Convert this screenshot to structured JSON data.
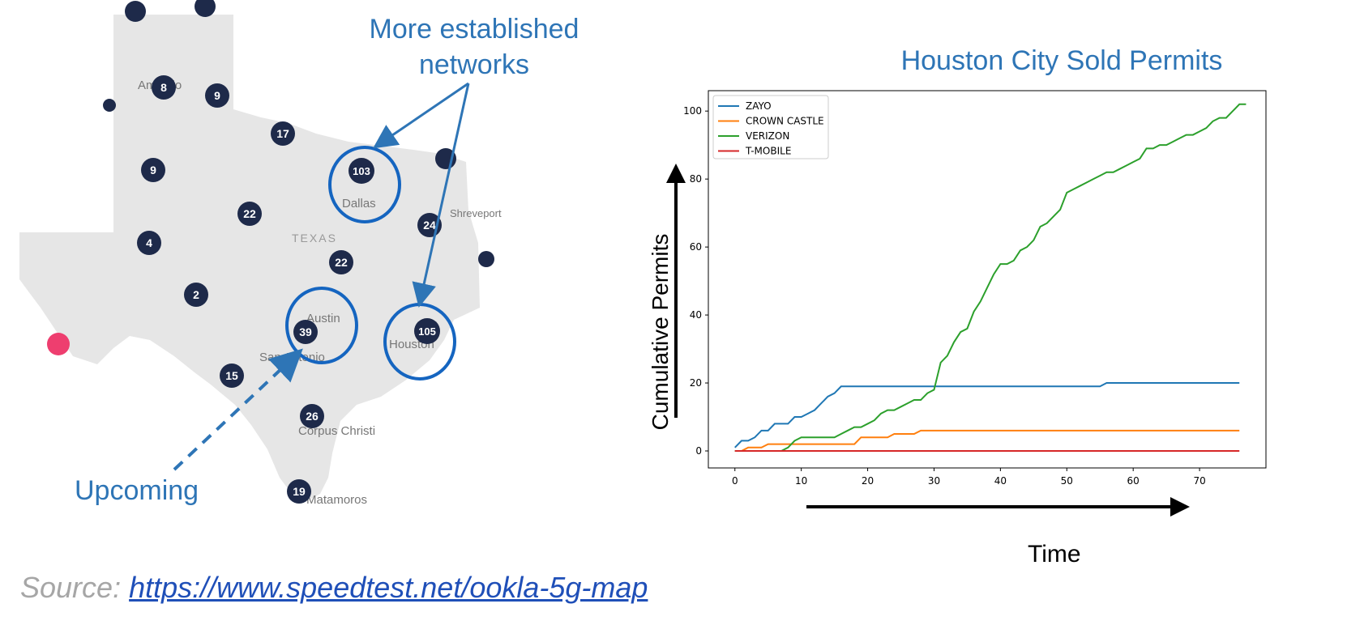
{
  "annotations": {
    "established": "More established networks",
    "upcoming": "Upcoming"
  },
  "map": {
    "state_label": "TEXAS",
    "cities": [
      "Amarillo",
      "Dallas",
      "Austin",
      "San Antonio",
      "Houston",
      "Corpus Christi",
      "Matamoros",
      "Shreveport"
    ],
    "markers": [
      "8",
      "9",
      "9",
      "17",
      "22",
      "4",
      "2",
      "22",
      "103",
      "24",
      "39",
      "105",
      "15",
      "26",
      "19"
    ],
    "colors": {
      "land": "#e6e6e6",
      "marker": "#1e2a4a",
      "circle": "#1565c0",
      "hot_marker": "#ee3e6f"
    }
  },
  "source": {
    "prefix": "Source:",
    "url_text": "https://www.speedtest.net/ookla-5g-map"
  },
  "chart_data": {
    "type": "line",
    "title": "Houston City Sold Permits",
    "xlabel": "Time",
    "ylabel": "Cumulative Permits",
    "xlim": [
      -4,
      80
    ],
    "ylim": [
      -5,
      106
    ],
    "xticks": [
      0,
      10,
      20,
      30,
      40,
      50,
      60,
      70
    ],
    "yticks": [
      0,
      20,
      40,
      60,
      80,
      100
    ],
    "legend_position": "top-left",
    "series": [
      {
        "name": "ZAYO",
        "color": "#1f77b4",
        "points": [
          [
            0,
            1
          ],
          [
            1,
            3
          ],
          [
            2,
            3
          ],
          [
            3,
            4
          ],
          [
            4,
            6
          ],
          [
            5,
            6
          ],
          [
            6,
            8
          ],
          [
            8,
            8
          ],
          [
            9,
            10
          ],
          [
            10,
            10
          ],
          [
            11,
            11
          ],
          [
            12,
            12
          ],
          [
            13,
            14
          ],
          [
            14,
            16
          ],
          [
            15,
            17
          ],
          [
            16,
            19
          ],
          [
            55,
            19
          ],
          [
            56,
            20
          ],
          [
            76,
            20
          ]
        ]
      },
      {
        "name": "CROWN CASTLE",
        "color": "#ff7f0e",
        "points": [
          [
            0,
            0
          ],
          [
            1,
            0
          ],
          [
            2,
            1
          ],
          [
            4,
            1
          ],
          [
            5,
            2
          ],
          [
            18,
            2
          ],
          [
            19,
            4
          ],
          [
            23,
            4
          ],
          [
            24,
            5
          ],
          [
            27,
            5
          ],
          [
            28,
            6
          ],
          [
            76,
            6
          ]
        ]
      },
      {
        "name": "VERIZON",
        "color": "#2ca02c",
        "points": [
          [
            0,
            0
          ],
          [
            7,
            0
          ],
          [
            8,
            1
          ],
          [
            9,
            3
          ],
          [
            10,
            4
          ],
          [
            15,
            4
          ],
          [
            16,
            5
          ],
          [
            17,
            6
          ],
          [
            18,
            7
          ],
          [
            19,
            7
          ],
          [
            20,
            8
          ],
          [
            21,
            9
          ],
          [
            22,
            11
          ],
          [
            23,
            12
          ],
          [
            24,
            12
          ],
          [
            25,
            13
          ],
          [
            26,
            14
          ],
          [
            27,
            15
          ],
          [
            28,
            15
          ],
          [
            29,
            17
          ],
          [
            30,
            18
          ],
          [
            31,
            26
          ],
          [
            32,
            28
          ],
          [
            33,
            32
          ],
          [
            34,
            35
          ],
          [
            35,
            36
          ],
          [
            36,
            41
          ],
          [
            37,
            44
          ],
          [
            38,
            48
          ],
          [
            39,
            52
          ],
          [
            40,
            55
          ],
          [
            41,
            55
          ],
          [
            42,
            56
          ],
          [
            43,
            59
          ],
          [
            44,
            60
          ],
          [
            45,
            62
          ],
          [
            46,
            66
          ],
          [
            47,
            67
          ],
          [
            48,
            69
          ],
          [
            49,
            71
          ],
          [
            50,
            76
          ],
          [
            51,
            77
          ],
          [
            52,
            78
          ],
          [
            53,
            79
          ],
          [
            54,
            80
          ],
          [
            55,
            81
          ],
          [
            56,
            82
          ],
          [
            57,
            82
          ],
          [
            58,
            83
          ],
          [
            59,
            84
          ],
          [
            60,
            85
          ],
          [
            61,
            86
          ],
          [
            62,
            89
          ],
          [
            63,
            89
          ],
          [
            64,
            90
          ],
          [
            65,
            90
          ],
          [
            66,
            91
          ],
          [
            67,
            92
          ],
          [
            68,
            93
          ],
          [
            69,
            93
          ],
          [
            70,
            94
          ],
          [
            71,
            95
          ],
          [
            72,
            97
          ],
          [
            73,
            98
          ],
          [
            74,
            98
          ],
          [
            75,
            100
          ],
          [
            76,
            102
          ],
          [
            77,
            102
          ]
        ]
      },
      {
        "name": "T-MOBILE",
        "color": "#d62728",
        "points": [
          [
            0,
            0
          ],
          [
            76,
            0
          ]
        ]
      }
    ]
  }
}
